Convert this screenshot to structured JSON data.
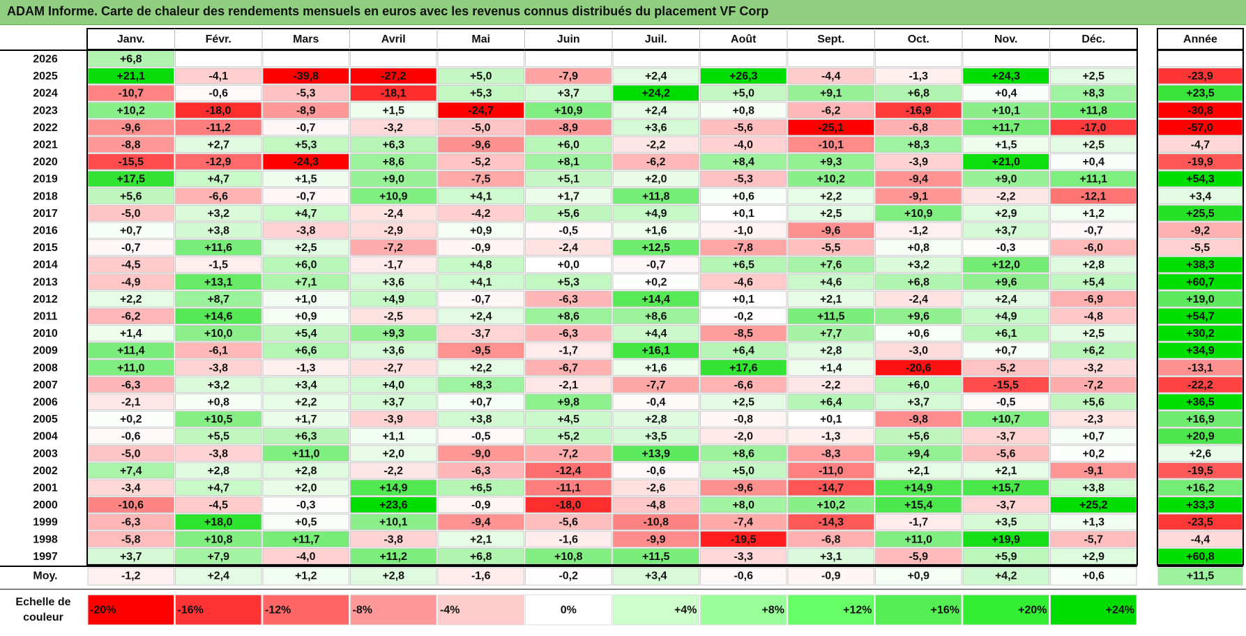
{
  "title": "ADAM Informe. Carte de chaleur des rendements mensuels en euros avec les revenus connus distribués du placement VF Corp",
  "chart_data": {
    "type": "heatmap",
    "months": [
      "Janv.",
      "Févr.",
      "Mars",
      "Avril",
      "Mai",
      "Juin",
      "Juil.",
      "Août",
      "Sept.",
      "Oct.",
      "Nov.",
      "Déc."
    ],
    "year_header": "Année",
    "rows": [
      {
        "year": "2026",
        "values": [
          "+6,8",
          "",
          "",
          "",
          "",
          "",
          "",
          "",
          "",
          "",
          "",
          ""
        ],
        "total": ""
      },
      {
        "year": "2025",
        "values": [
          "+21,1",
          "-4,1",
          "-39,8",
          "-27,2",
          "+5,0",
          "-7,9",
          "+2,4",
          "+26,3",
          "-4,4",
          "-1,3",
          "+24,3",
          "+2,5"
        ],
        "total": "-23,9"
      },
      {
        "year": "2024",
        "values": [
          "-10,7",
          "-0,6",
          "-5,3",
          "-18,1",
          "+5,3",
          "+3,7",
          "+24,2",
          "+5,0",
          "+9,1",
          "+6,8",
          "+0,4",
          "+8,3"
        ],
        "total": "+23,5"
      },
      {
        "year": "2023",
        "values": [
          "+10,2",
          "-18,0",
          "-8,9",
          "+1,5",
          "-24,7",
          "+10,9",
          "+2,4",
          "+0,8",
          "-6,2",
          "-16,9",
          "+10,1",
          "+11,8"
        ],
        "total": "-30,8"
      },
      {
        "year": "2022",
        "values": [
          "-9,6",
          "-11,2",
          "-0,7",
          "-3,2",
          "-5,0",
          "-8,9",
          "+3,6",
          "-5,6",
          "-25,1",
          "-6,8",
          "+11,7",
          "-17,0"
        ],
        "total": "-57,0"
      },
      {
        "year": "2021",
        "values": [
          "-8,8",
          "+2,7",
          "+5,3",
          "+6,3",
          "-9,6",
          "+6,0",
          "-2,2",
          "-4,0",
          "-10,1",
          "+8,3",
          "+1,5",
          "+2,5"
        ],
        "total": "-4,7"
      },
      {
        "year": "2020",
        "values": [
          "-15,5",
          "-12,9",
          "-24,3",
          "+8,6",
          "-5,2",
          "+8,1",
          "-6,2",
          "+8,4",
          "+9,3",
          "-3,9",
          "+21,0",
          "+0,4"
        ],
        "total": "-19,9"
      },
      {
        "year": "2019",
        "values": [
          "+17,5",
          "+4,7",
          "+1,5",
          "+9,0",
          "-7,5",
          "+5,1",
          "+2,0",
          "-5,3",
          "+10,2",
          "-9,4",
          "+9,0",
          "+11,1"
        ],
        "total": "+54,3"
      },
      {
        "year": "2018",
        "values": [
          "+5,6",
          "-6,6",
          "-0,7",
          "+10,9",
          "+4,1",
          "+1,7",
          "+11,8",
          "+0,6",
          "+2,2",
          "-9,1",
          "-2,2",
          "-12,1"
        ],
        "total": "+3,4"
      },
      {
        "year": "2017",
        "values": [
          "-5,0",
          "+3,2",
          "+4,7",
          "-2,4",
          "-4,2",
          "+5,6",
          "+4,9",
          "+0,1",
          "+2,5",
          "+10,9",
          "+2,9",
          "+1,2"
        ],
        "total": "+25,5"
      },
      {
        "year": "2016",
        "values": [
          "+0,7",
          "+3,8",
          "-3,8",
          "-2,9",
          "+0,9",
          "-0,5",
          "+1,6",
          "-1,0",
          "-9,6",
          "-1,2",
          "+3,7",
          "-0,7"
        ],
        "total": "-9,2"
      },
      {
        "year": "2015",
        "values": [
          "-0,7",
          "+11,6",
          "+2,5",
          "-7,2",
          "-0,9",
          "-2,4",
          "+12,5",
          "-7,8",
          "-5,5",
          "+0,8",
          "-0,3",
          "-6,0"
        ],
        "total": "-5,5"
      },
      {
        "year": "2014",
        "values": [
          "-4,5",
          "-1,5",
          "+6,0",
          "-1,7",
          "+4,8",
          "+0,0",
          "-0,7",
          "+6,5",
          "+7,6",
          "+3,2",
          "+12,0",
          "+2,8"
        ],
        "total": "+38,3"
      },
      {
        "year": "2013",
        "values": [
          "-4,9",
          "+13,1",
          "+7,1",
          "+3,6",
          "+4,1",
          "+5,3",
          "+0,2",
          "-4,6",
          "+4,6",
          "+6,8",
          "+9,6",
          "+5,4"
        ],
        "total": "+60,7"
      },
      {
        "year": "2012",
        "values": [
          "+2,2",
          "+8,7",
          "+1,0",
          "+4,9",
          "-0,7",
          "-6,3",
          "+14,4",
          "+0,1",
          "+2,1",
          "-2,4",
          "+2,4",
          "-6,9"
        ],
        "total": "+19,0"
      },
      {
        "year": "2011",
        "values": [
          "-6,2",
          "+14,6",
          "+0,9",
          "-2,5",
          "+2,4",
          "+8,6",
          "+8,6",
          "-0,2",
          "+11,5",
          "+9,6",
          "+4,9",
          "-4,8"
        ],
        "total": "+54,7"
      },
      {
        "year": "2010",
        "values": [
          "+1,4",
          "+10,0",
          "+5,4",
          "+9,3",
          "-3,7",
          "-6,3",
          "+4,4",
          "-8,5",
          "+7,7",
          "+0,6",
          "+6,1",
          "+2,5"
        ],
        "total": "+30,2"
      },
      {
        "year": "2009",
        "values": [
          "+11,4",
          "-6,1",
          "+6,6",
          "+3,6",
          "-9,5",
          "-1,7",
          "+16,1",
          "+6,4",
          "+2,8",
          "-3,0",
          "+0,7",
          "+6,2"
        ],
        "total": "+34,9"
      },
      {
        "year": "2008",
        "values": [
          "+11,0",
          "-3,8",
          "-1,3",
          "-2,7",
          "+2,2",
          "-6,7",
          "+1,6",
          "+17,6",
          "+1,4",
          "-20,6",
          "-5,2",
          "-3,2"
        ],
        "total": "-13,1"
      },
      {
        "year": "2007",
        "values": [
          "-6,3",
          "+3,2",
          "+3,4",
          "+4,0",
          "+8,3",
          "-2,1",
          "-7,7",
          "-6,6",
          "-2,2",
          "+6,0",
          "-15,5",
          "-7,2"
        ],
        "total": "-22,2"
      },
      {
        "year": "2006",
        "values": [
          "-2,1",
          "+0,8",
          "+2,2",
          "+3,7",
          "+0,7",
          "+9,8",
          "-0,4",
          "+2,5",
          "+6,4",
          "+3,7",
          "-0,5",
          "+5,6"
        ],
        "total": "+36,5"
      },
      {
        "year": "2005",
        "values": [
          "+0,2",
          "+10,5",
          "+1,7",
          "-3,9",
          "+3,8",
          "+4,5",
          "+2,8",
          "-0,8",
          "+0,1",
          "-9,8",
          "+10,7",
          "-2,3"
        ],
        "total": "+16,9"
      },
      {
        "year": "2004",
        "values": [
          "-0,6",
          "+5,5",
          "+6,3",
          "+1,1",
          "-0,5",
          "+5,2",
          "+3,5",
          "-2,0",
          "-1,3",
          "+5,6",
          "-3,7",
          "+0,7"
        ],
        "total": "+20,9"
      },
      {
        "year": "2003",
        "values": [
          "-5,0",
          "-3,8",
          "+11,0",
          "+2,0",
          "-9,0",
          "-7,2",
          "+13,9",
          "+8,6",
          "-8,3",
          "+9,4",
          "-5,6",
          "+0,2"
        ],
        "total": "+2,6"
      },
      {
        "year": "2002",
        "values": [
          "+7,4",
          "+2,8",
          "+2,8",
          "-2,2",
          "-6,3",
          "-12,4",
          "-0,6",
          "+5,0",
          "-11,0",
          "+2,1",
          "+2,1",
          "-9,1"
        ],
        "total": "-19,5"
      },
      {
        "year": "2001",
        "values": [
          "-3,4",
          "+4,7",
          "+2,0",
          "+14,9",
          "+6,5",
          "-11,1",
          "-2,6",
          "-9,6",
          "-14,7",
          "+14,9",
          "+15,7",
          "+3,8"
        ],
        "total": "+16,2"
      },
      {
        "year": "2000",
        "values": [
          "-10,6",
          "-4,5",
          "-0,3",
          "+23,6",
          "-0,9",
          "-18,0",
          "-4,8",
          "+8,0",
          "+10,2",
          "+15,4",
          "-3,7",
          "+25,2"
        ],
        "total": "+33,3"
      },
      {
        "year": "1999",
        "values": [
          "-6,3",
          "+18,0",
          "+0,5",
          "+10,1",
          "-9,4",
          "-5,6",
          "-10,8",
          "-7,4",
          "-14,3",
          "-1,7",
          "+3,5",
          "+1,3"
        ],
        "total": "-23,5"
      },
      {
        "year": "1998",
        "values": [
          "-5,8",
          "+10,8",
          "+11,7",
          "-3,8",
          "+2,1",
          "-1,6",
          "-9,9",
          "-19,5",
          "-6,8",
          "+11,0",
          "+19,9",
          "-5,7"
        ],
        "total": "-4,4"
      },
      {
        "year": "1997",
        "values": [
          "+3,7",
          "+7,9",
          "-4,0",
          "+11,2",
          "+6,8",
          "+10,8",
          "+11,5",
          "-3,3",
          "+3,1",
          "-5,9",
          "+5,9",
          "+2,9"
        ],
        "total": "+60,8"
      }
    ],
    "average": {
      "label": "Moy.",
      "values": [
        "-1,2",
        "+2,4",
        "+1,2",
        "+2,8",
        "-1,6",
        "-0,2",
        "+3,4",
        "-0,6",
        "-0,9",
        "+0,9",
        "+4,2",
        "+0,6"
      ],
      "total": "+11,5"
    },
    "legend": {
      "label_line1": "Echelle de",
      "label_line2": "couleur",
      "items": [
        {
          "text": "-20%",
          "color": "#ff0000"
        },
        {
          "text": "-16%",
          "color": "#ff3333"
        },
        {
          "text": "-12%",
          "color": "#ff6666"
        },
        {
          "text": "-8%",
          "color": "#ff9999"
        },
        {
          "text": "-4%",
          "color": "#ffcccc"
        },
        {
          "text": "0%",
          "color": "#ffffff"
        },
        {
          "text": "+4%",
          "color": "#ccffcc"
        },
        {
          "text": "+8%",
          "color": "#99ff99"
        },
        {
          "text": "+12%",
          "color": "#66ff66"
        },
        {
          "text": "+16%",
          "color": "#55ee55"
        },
        {
          "text": "+20%",
          "color": "#33ee33"
        },
        {
          "text": "+24%",
          "color": "#00dd00"
        }
      ]
    }
  }
}
